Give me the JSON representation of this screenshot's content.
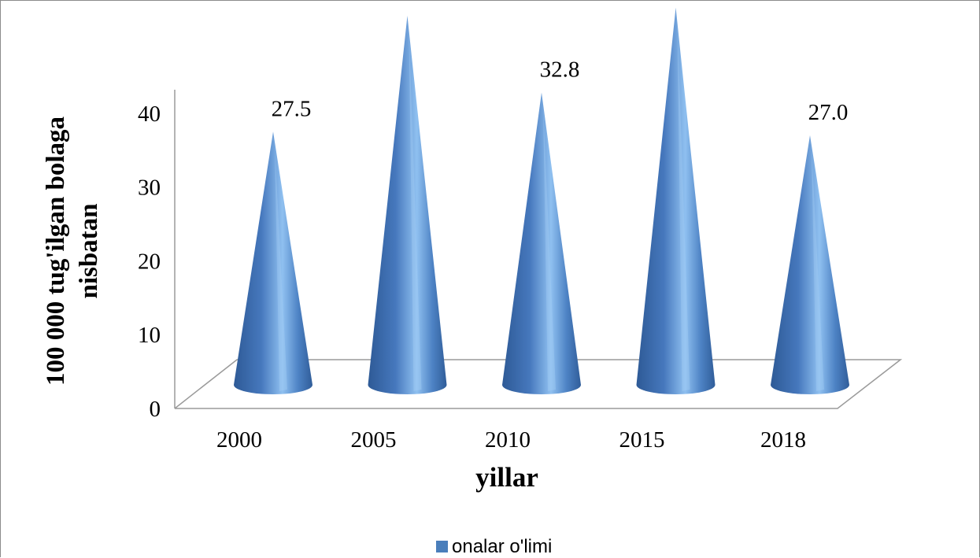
{
  "chart_data": {
    "type": "bar",
    "style": "3d-cone",
    "categories": [
      "2000",
      "2005",
      "2010",
      "2015",
      "2018"
    ],
    "series": [
      {
        "name": "onalar o'limi",
        "values": [
          27.5,
          43.2,
          32.8,
          44.3,
          27.0
        ],
        "color": "#4a7ebb"
      }
    ],
    "data_labels": [
      "27.5",
      "43.2",
      "32.8",
      "44.3",
      "27.0"
    ],
    "xlabel": "yillar",
    "ylabel_lines": [
      "100 000  tug'ilgan  bolaga",
      "nisbatan"
    ],
    "yticks": [
      0,
      10,
      20,
      30,
      40
    ],
    "ylim": [
      0,
      48
    ],
    "grid": false,
    "legend_position": "bottom"
  }
}
